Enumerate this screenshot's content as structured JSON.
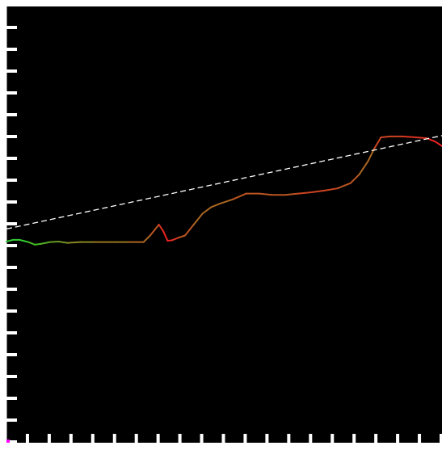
{
  "chart_data": {
    "type": "line",
    "title": "",
    "xlabel": "",
    "ylabel": "",
    "background_color": "#000000",
    "frame_color": "#ffffff",
    "tick_color": "#ffffff",
    "corner_marker_color": "#ff00ff",
    "xlim": [
      0,
      100
    ],
    "ylim": [
      0,
      100
    ],
    "x_tick_count": 20,
    "y_tick_count": 20,
    "grid": false,
    "legend": "none",
    "series": [
      {
        "style": "solid",
        "color_gradient": true,
        "points": [
          {
            "x": 0.0,
            "y": 46.1,
            "color": "#33cc33"
          },
          {
            "x": 1.5,
            "y": 46.5,
            "color": "#33cc33"
          },
          {
            "x": 3.0,
            "y": 46.5,
            "color": "#33cc33"
          },
          {
            "x": 5.0,
            "y": 46.0,
            "color": "#33cc33"
          },
          {
            "x": 6.5,
            "y": 45.4,
            "color": "#44bb22"
          },
          {
            "x": 8.0,
            "y": 45.6,
            "color": "#44bb22"
          },
          {
            "x": 10.0,
            "y": 46.0,
            "color": "#55aa22"
          },
          {
            "x": 12.0,
            "y": 46.1,
            "color": "#669922"
          },
          {
            "x": 14.0,
            "y": 45.8,
            "color": "#779922"
          },
          {
            "x": 17.0,
            "y": 46.0,
            "color": "#888822"
          },
          {
            "x": 20.0,
            "y": 46.0,
            "color": "#888822"
          },
          {
            "x": 25.0,
            "y": 46.0,
            "color": "#997722"
          },
          {
            "x": 28.0,
            "y": 46.0,
            "color": "#997722"
          },
          {
            "x": 31.5,
            "y": 46.0,
            "color": "#aa6622"
          },
          {
            "x": 33.0,
            "y": 47.5,
            "color": "#aa6622"
          },
          {
            "x": 35.0,
            "y": 50.0,
            "color": "#bb5522"
          },
          {
            "x": 36.0,
            "y": 48.5,
            "color": "#dd3322"
          },
          {
            "x": 37.0,
            "y": 46.3,
            "color": "#ee2222"
          },
          {
            "x": 38.0,
            "y": 46.4,
            "color": "#ee2222"
          },
          {
            "x": 39.5,
            "y": 47.0,
            "color": "#dd3322"
          },
          {
            "x": 41.0,
            "y": 47.5,
            "color": "#bb5522"
          },
          {
            "x": 43.0,
            "y": 50.0,
            "color": "#bb5522"
          },
          {
            "x": 45.0,
            "y": 52.5,
            "color": "#aa6622"
          },
          {
            "x": 47.0,
            "y": 54.0,
            "color": "#aa6622"
          },
          {
            "x": 49.0,
            "y": 54.8,
            "color": "#aa6622"
          },
          {
            "x": 52.0,
            "y": 55.8,
            "color": "#aa6622"
          },
          {
            "x": 55.0,
            "y": 57.1,
            "color": "#bb5522"
          },
          {
            "x": 58.0,
            "y": 57.1,
            "color": "#bb5522"
          },
          {
            "x": 61.0,
            "y": 56.8,
            "color": "#bb5522"
          },
          {
            "x": 64.0,
            "y": 56.8,
            "color": "#bb5522"
          },
          {
            "x": 67.0,
            "y": 57.1,
            "color": "#bb5522"
          },
          {
            "x": 70.0,
            "y": 57.4,
            "color": "#cc4422"
          },
          {
            "x": 73.0,
            "y": 57.8,
            "color": "#cc4422"
          },
          {
            "x": 76.0,
            "y": 58.3,
            "color": "#cc4422"
          },
          {
            "x": 79.0,
            "y": 59.5,
            "color": "#bb5522"
          },
          {
            "x": 81.0,
            "y": 61.5,
            "color": "#bb5522"
          },
          {
            "x": 83.0,
            "y": 64.5,
            "color": "#aa6622"
          },
          {
            "x": 84.5,
            "y": 67.5,
            "color": "#aa6622"
          },
          {
            "x": 86.0,
            "y": 70.0,
            "color": "#cc4422"
          },
          {
            "x": 88.0,
            "y": 70.2,
            "color": "#cc4422"
          },
          {
            "x": 91.0,
            "y": 70.2,
            "color": "#cc4422"
          },
          {
            "x": 94.0,
            "y": 70.0,
            "color": "#dd3322"
          },
          {
            "x": 96.5,
            "y": 69.8,
            "color": "#dd3322"
          },
          {
            "x": 98.5,
            "y": 69.0,
            "color": "#ee2222"
          },
          {
            "x": 100.0,
            "y": 68.0,
            "color": "#ee2222"
          }
        ]
      },
      {
        "style": "dashed",
        "color": "#ffffff",
        "points": [
          {
            "x": 0.0,
            "y": 49.0
          },
          {
            "x": 100.0,
            "y": 70.4
          }
        ]
      }
    ]
  }
}
